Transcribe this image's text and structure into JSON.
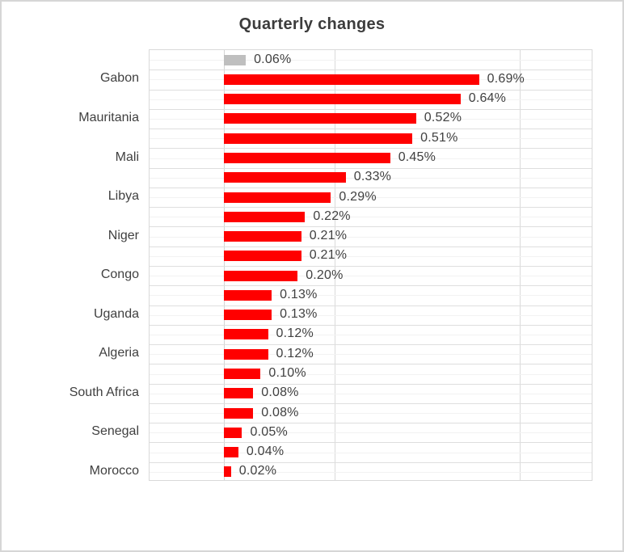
{
  "window": {
    "background": "#FFFFFF",
    "border_color": "#D6D6D6"
  },
  "chart_data": {
    "type": "bar",
    "orientation": "horizontal",
    "title": "Quarterly changes",
    "value_format": "percent",
    "legend": "none",
    "x_axis": {
      "min_percent": -0.2,
      "max_percent": 1.0,
      "baseline_percent": 0,
      "gridlines_at_percent": [
        -0.2,
        0.3,
        0.8
      ],
      "tick_labels_visible": false
    },
    "colors": {
      "default_bar": "#FF0000",
      "first_bar": "#BFBFBF",
      "major_gridline": "#DEDEDE",
      "minor_gridline": "#F2F2F2",
      "text": "#404040"
    },
    "bars": [
      {
        "category": "",
        "value_percent": 0.06,
        "data_label": "0.06%",
        "color": "#BFBFBF"
      },
      {
        "category": "Gabon",
        "value_percent": 0.69,
        "data_label": "0.69%",
        "color": "#FF0000"
      },
      {
        "category": "",
        "value_percent": 0.64,
        "data_label": "0.64%",
        "color": "#FF0000"
      },
      {
        "category": "Mauritania",
        "value_percent": 0.52,
        "data_label": "0.52%",
        "color": "#FF0000"
      },
      {
        "category": "",
        "value_percent": 0.51,
        "data_label": "0.51%",
        "color": "#FF0000"
      },
      {
        "category": "Mali",
        "value_percent": 0.45,
        "data_label": "0.45%",
        "color": "#FF0000"
      },
      {
        "category": "",
        "value_percent": 0.33,
        "data_label": "0.33%",
        "color": "#FF0000"
      },
      {
        "category": "Libya",
        "value_percent": 0.29,
        "data_label": "0.29%",
        "color": "#FF0000"
      },
      {
        "category": "",
        "value_percent": 0.22,
        "data_label": "0.22%",
        "color": "#FF0000"
      },
      {
        "category": "Niger",
        "value_percent": 0.21,
        "data_label": "0.21%",
        "color": "#FF0000"
      },
      {
        "category": "",
        "value_percent": 0.21,
        "data_label": "0.21%",
        "color": "#FF0000"
      },
      {
        "category": "Congo",
        "value_percent": 0.2,
        "data_label": "0.20%",
        "color": "#FF0000"
      },
      {
        "category": "",
        "value_percent": 0.13,
        "data_label": "0.13%",
        "color": "#FF0000"
      },
      {
        "category": "Uganda",
        "value_percent": 0.13,
        "data_label": "0.13%",
        "color": "#FF0000"
      },
      {
        "category": "",
        "value_percent": 0.12,
        "data_label": "0.12%",
        "color": "#FF0000"
      },
      {
        "category": "Algeria",
        "value_percent": 0.12,
        "data_label": "0.12%",
        "color": "#FF0000"
      },
      {
        "category": "",
        "value_percent": 0.1,
        "data_label": "0.10%",
        "color": "#FF0000"
      },
      {
        "category": "South Africa",
        "value_percent": 0.08,
        "data_label": "0.08%",
        "color": "#FF0000"
      },
      {
        "category": "",
        "value_percent": 0.08,
        "data_label": "0.08%",
        "color": "#FF0000"
      },
      {
        "category": "Senegal",
        "value_percent": 0.05,
        "data_label": "0.05%",
        "color": "#FF0000"
      },
      {
        "category": "",
        "value_percent": 0.04,
        "data_label": "0.04%",
        "color": "#FF0000"
      },
      {
        "category": "Morocco",
        "value_percent": 0.02,
        "data_label": "0.02%",
        "color": "#FF0000"
      }
    ]
  }
}
